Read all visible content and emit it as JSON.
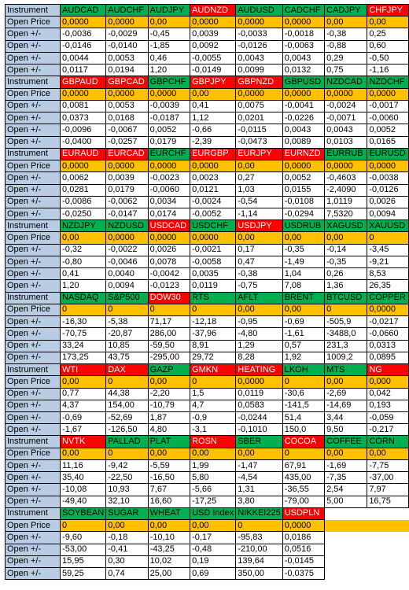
{
  "colors": {
    "label_bg": "#b8cce4",
    "price_bg": "#ffc000",
    "up_bg": "#00b050",
    "down_bg": "#ff0000"
  },
  "labels": {
    "instrument": "Instrument",
    "open_price": "Open Price",
    "open_change": "Open +/-"
  },
  "blocks": [
    {
      "instruments": [
        {
          "name": "AUDCAD",
          "color": "g"
        },
        {
          "name": "AUDCHF",
          "color": "g"
        },
        {
          "name": "AUDJPY",
          "color": "g"
        },
        {
          "name": "AUDNZD",
          "color": "r"
        },
        {
          "name": "AUDUSD",
          "color": "g"
        },
        {
          "name": "CADCHF",
          "color": "g"
        },
        {
          "name": "CADJPY",
          "color": "g"
        },
        {
          "name": "CHFJPY",
          "color": "r"
        }
      ],
      "open_price": [
        "0,0000",
        "0,0000",
        "0,00",
        "0,0000",
        "0,0000",
        "0,0000",
        "0,00",
        "0,00"
      ],
      "changes": [
        [
          "-0,0036",
          "-0,0029",
          "-0,45",
          "0,0039",
          "-0,0033",
          "-0,0018",
          "-0,38",
          "0,25"
        ],
        [
          "-0,0146",
          "-0,0140",
          "-1,85",
          "0,0092",
          "-0,0126",
          "-0,0063",
          "-0,88",
          "0,60"
        ],
        [
          "0,0044",
          "0,0053",
          "0,46",
          "-0,0055",
          "0,0043",
          "0,0043",
          "0,29",
          "-0,50"
        ],
        [
          "0,0117",
          "0,0194",
          "1,20",
          "-0,0149",
          "0,0099",
          "0,0132",
          "0,75",
          "-1,16"
        ]
      ]
    },
    {
      "instruments": [
        {
          "name": "GBPAUD",
          "color": "r"
        },
        {
          "name": "GBPCAD",
          "color": "r"
        },
        {
          "name": "GBPCHF",
          "color": "g"
        },
        {
          "name": "GBPJPY",
          "color": "r"
        },
        {
          "name": "GBPNZD",
          "color": "r"
        },
        {
          "name": "GBPUSD",
          "color": "g"
        },
        {
          "name": "NZDCAD",
          "color": "g"
        },
        {
          "name": "NZDCHF",
          "color": "g"
        }
      ],
      "open_price": [
        "0,0000",
        "0,0000",
        "0,0000",
        "0,00",
        "0,0000",
        "0,0000",
        "0,0000",
        "0,0000"
      ],
      "changes": [
        [
          "0,0081",
          "0,0053",
          "-0,0039",
          "0,41",
          "0,0075",
          "-0,0041",
          "-0,0024",
          "-0,0017"
        ],
        [
          "0,0373",
          "0,0168",
          "-0,0187",
          "1,12",
          "0,0201",
          "-0,0226",
          "-0,0071",
          "-0,0060"
        ],
        [
          "-0,0096",
          "-0,0067",
          "0,0052",
          "-0,66",
          "-0,0115",
          "0,0043",
          "0,0043",
          "0,0052"
        ],
        [
          "-0,0400",
          "-0,0257",
          "0,0179",
          "-2,39",
          "-0,0473",
          "0,0089",
          "0,0103",
          "0,0165"
        ]
      ]
    },
    {
      "instruments": [
        {
          "name": "EURAUD",
          "color": "r"
        },
        {
          "name": "EURCAD",
          "color": "r"
        },
        {
          "name": "EURCHF",
          "color": "g"
        },
        {
          "name": "EURGBP",
          "color": "r"
        },
        {
          "name": "EURJPY",
          "color": "r"
        },
        {
          "name": "EURNZD",
          "color": "r"
        },
        {
          "name": "EURRUB",
          "color": "g"
        },
        {
          "name": "EURUSD",
          "color": "g"
        }
      ],
      "open_price": [
        "0,0000",
        "0,0000",
        "0,0000",
        "0,0000",
        "0,00",
        "0,0000",
        "0,0000",
        "0,0000"
      ],
      "changes": [
        [
          "0,0062",
          "0,0039",
          "-0,0023",
          "0,0023",
          "0,27",
          "0,0052",
          "-0,4603",
          "-0,0038"
        ],
        [
          "0,0281",
          "0,0179",
          "-0,0060",
          "0,0121",
          "1,03",
          "0,0155",
          "-2,4090",
          "-0,0126"
        ],
        [
          "-0,0086",
          "-0,0062",
          "0,0034",
          "-0,0024",
          "-0,54",
          "-0,0108",
          "1,0119",
          "0,0026"
        ],
        [
          "-0,0250",
          "-0,0147",
          "0,0174",
          "-0,0052",
          "-1,14",
          "-0,0294",
          "7,5320",
          "0,0094"
        ]
      ]
    },
    {
      "instruments": [
        {
          "name": "NZDJPY",
          "color": "g"
        },
        {
          "name": "NZDUSD",
          "color": "g"
        },
        {
          "name": "USDCAD",
          "color": "r"
        },
        {
          "name": "USDCHF",
          "color": "g"
        },
        {
          "name": "USDJPY",
          "color": "r"
        },
        {
          "name": "USDRUB",
          "color": "g"
        },
        {
          "name": "XAGUSD",
          "color": "g"
        },
        {
          "name": "XAUUSD",
          "color": "g"
        }
      ],
      "open_price": [
        "0,00",
        "0,0000",
        "0,0000",
        "0,0000",
        "0,00",
        "0,00",
        "0,00",
        "0"
      ],
      "changes": [
        [
          "-0,32",
          "-0,0022",
          "0,0026",
          "-0,0021",
          "0,17",
          "-0,35",
          "-0,14",
          "-3,45"
        ],
        [
          "-0,80",
          "-0,0046",
          "0,0078",
          "-0,0058",
          "0,47",
          "-1,49",
          "-0,35",
          "-9,21"
        ],
        [
          "0,41",
          "0,0040",
          "-0,0042",
          "0,0035",
          "-0,38",
          "1,04",
          "0,26",
          "8,53"
        ],
        [
          "1,20",
          "0,0094",
          "-0,0123",
          "0,0119",
          "-0,75",
          "7,08",
          "1,36",
          "26,35"
        ]
      ]
    },
    {
      "instruments": [
        {
          "name": "NASDAQ",
          "color": "g"
        },
        {
          "name": "S&P500",
          "color": "g"
        },
        {
          "name": "DOW30",
          "color": "r"
        },
        {
          "name": "RTS",
          "color": "g"
        },
        {
          "name": "AFLT",
          "color": "g"
        },
        {
          "name": "BRENT",
          "color": "g"
        },
        {
          "name": "BTCUSD",
          "color": "g"
        },
        {
          "name": "COPPER",
          "color": "g"
        }
      ],
      "open_price": [
        "0",
        "0",
        "0",
        "0",
        "0,00",
        "0,00",
        "0",
        "0,0000"
      ],
      "changes": [
        [
          "-16,30",
          "-5,38",
          "71,17",
          "-12,18",
          "-0,95",
          "-0,69",
          "-505,9",
          "-0,0217"
        ],
        [
          "-70,75",
          "-20,87",
          "286,00",
          "-37,96",
          "-4,80",
          "-1,61",
          "-3488,0",
          "-0,0660"
        ],
        [
          "33,24",
          "10,85",
          "-59,50",
          "8,91",
          "1,29",
          "0,57",
          "231,3",
          "0,0313"
        ],
        [
          "173,25",
          "43,75",
          "-295,00",
          "29,72",
          "8,28",
          "1,92",
          "1009,2",
          "0,0895"
        ]
      ]
    },
    {
      "instruments": [
        {
          "name": "WTI",
          "color": "r"
        },
        {
          "name": "DAX",
          "color": "r"
        },
        {
          "name": "GAZP",
          "color": "g"
        },
        {
          "name": "GMKN",
          "color": "r"
        },
        {
          "name": "HEATING",
          "color": "r"
        },
        {
          "name": "LKOH",
          "color": "g"
        },
        {
          "name": "MTS",
          "color": "g"
        },
        {
          "name": "NG",
          "color": "r"
        }
      ],
      "open_price": [
        "0,00",
        "0",
        "0,00",
        "0",
        "0,0000",
        "0",
        "0,00",
        "0,000"
      ],
      "changes": [
        [
          "0,77",
          "44,38",
          "-2,20",
          "1,5",
          "0,0119",
          "-30,6",
          "-2,69",
          "0,042"
        ],
        [
          "4,37",
          "154,00",
          "-10,79",
          "4,7",
          "0,0583",
          "-141,5",
          "-14,69",
          "0,193"
        ],
        [
          "-0,69",
          "-52,69",
          "1,87",
          "-0,9",
          "-0,0244",
          "51,4",
          "3,44",
          "-0,059"
        ],
        [
          "-1,67",
          "-126,50",
          "4,80",
          "-3,1",
          "-0,1010",
          "150,0",
          "9,50",
          "-0,217"
        ]
      ]
    },
    {
      "instruments": [
        {
          "name": "NVTK",
          "color": "r"
        },
        {
          "name": "PALLAD",
          "color": "g"
        },
        {
          "name": "PLAT",
          "color": "g"
        },
        {
          "name": "ROSN",
          "color": "r"
        },
        {
          "name": "SBER",
          "color": "g"
        },
        {
          "name": "COCOA",
          "color": "r"
        },
        {
          "name": "COFFEE",
          "color": "g"
        },
        {
          "name": "CORN",
          "color": "g"
        }
      ],
      "open_price": [
        "0,00",
        "0",
        "0,00",
        "0,00",
        "0,00",
        "0",
        "0,00",
        "0,00"
      ],
      "changes": [
        [
          "11,16",
          "-9,42",
          "-5,59",
          "1,99",
          "-1,47",
          "67,91",
          "-1,69",
          "-7,75"
        ],
        [
          "35,40",
          "-22,50",
          "-16,50",
          "5,80",
          "-4,54",
          "435,00",
          "-7,35",
          "-37,00"
        ],
        [
          "-10,08",
          "10,93",
          "7,67",
          "-5,66",
          "1,31",
          "-36,55",
          "2,54",
          "7,97"
        ],
        [
          "-49,40",
          "32,10",
          "16,60",
          "-17,25",
          "3,80",
          "-79,00",
          "5,00",
          "16,75"
        ]
      ]
    },
    {
      "instruments": [
        {
          "name": "SOYBEAN",
          "color": "g"
        },
        {
          "name": "SUGAR",
          "color": "g"
        },
        {
          "name": "WHEAT",
          "color": "g"
        },
        {
          "name": "USD Index",
          "color": "g"
        },
        {
          "name": "NIKKEI225",
          "color": "g"
        },
        {
          "name": "USDPLN",
          "color": "r"
        }
      ],
      "open_price": [
        "0",
        "0,00",
        "0,00",
        "0,00",
        "0",
        "0,0000"
      ],
      "changes": [
        [
          "-9,60",
          "-0,18",
          "-10,10",
          "-0,17",
          "-95,83",
          "0,0186"
        ],
        [
          "-53,00",
          "-0,41",
          "-43,25",
          "-0,48",
          "-210,00",
          "0,0516"
        ],
        [
          "15,95",
          "0,30",
          "10,02",
          "0,19",
          "139,64",
          "-0,0145"
        ],
        [
          "59,25",
          "0,74",
          "25,00",
          "0,69",
          "350,00",
          "-0,0375"
        ]
      ]
    }
  ]
}
